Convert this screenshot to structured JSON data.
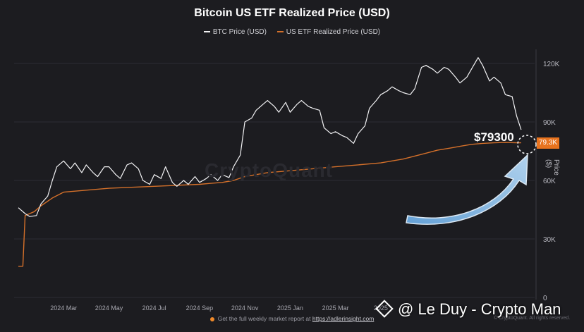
{
  "chart_data": {
    "type": "line",
    "title": "Bitcoin US ETF Realized Price (USD)",
    "xlabel": "",
    "ylabel": "Price ($)",
    "ylim": [
      0,
      130000
    ],
    "yticks": [
      0,
      30000,
      60000,
      90000,
      120000
    ],
    "ytick_labels": [
      "0",
      "30K",
      "60K",
      "90K",
      "120K"
    ],
    "xtick_labels": [
      "2024 Mar",
      "2024 May",
      "2024 Jul",
      "2024 Sep",
      "2024 Nov",
      "2025 Jan",
      "2025 Mar",
      "2025"
    ],
    "x_months": [
      2.0,
      4.0,
      6.0,
      8.0,
      10.0,
      12.0,
      14.0,
      16.0
    ],
    "xlim": [
      0.0,
      22.7
    ],
    "series": [
      {
        "name": "BTC Price (USD)",
        "color": "#f2f2f4",
        "x": [
          0.0,
          0.3,
          0.5,
          0.8,
          1.0,
          1.3,
          1.5,
          1.7,
          2.0,
          2.3,
          2.5,
          2.8,
          3.0,
          3.3,
          3.5,
          3.8,
          4.0,
          4.3,
          4.5,
          4.8,
          5.0,
          5.3,
          5.5,
          5.8,
          6.0,
          6.3,
          6.5,
          6.8,
          7.0,
          7.3,
          7.5,
          7.8,
          8.0,
          8.3,
          8.5,
          8.8,
          9.0,
          9.3,
          9.5,
          9.8,
          10.0,
          10.3,
          10.5,
          10.8,
          11.0,
          11.3,
          11.5,
          11.8,
          12.0,
          12.3,
          12.5,
          12.8,
          13.0,
          13.3,
          13.5,
          13.8,
          14.0,
          14.3,
          14.5,
          14.8,
          15.0,
          15.3,
          15.5,
          15.8,
          16.0,
          16.3,
          16.5,
          16.8,
          17.0,
          17.3,
          17.5,
          17.8,
          18.0,
          18.3,
          18.5,
          18.8,
          19.0,
          19.3,
          19.5,
          19.8,
          20.0,
          20.3,
          20.5,
          20.8,
          21.0,
          21.3,
          21.5,
          21.8,
          22.0,
          22.2
        ],
        "values": [
          46000,
          43000,
          41500,
          42000,
          48000,
          52000,
          60000,
          67000,
          70000,
          66000,
          69000,
          64000,
          68000,
          64000,
          62000,
          67000,
          67000,
          63000,
          61000,
          68000,
          69000,
          66000,
          60000,
          58000,
          63000,
          61000,
          67000,
          59000,
          57000,
          60000,
          58000,
          62000,
          59000,
          61000,
          63000,
          60000,
          63000,
          61500,
          67000,
          73000,
          90000,
          92000,
          96000,
          99000,
          101000,
          98000,
          95000,
          100000,
          95000,
          99000,
          101000,
          98000,
          97000,
          96000,
          87000,
          84000,
          85000,
          83000,
          82000,
          79000,
          84000,
          88000,
          97000,
          101000,
          104000,
          106000,
          108000,
          106000,
          105000,
          104000,
          107000,
          118000,
          119000,
          117000,
          115000,
          118000,
          117000,
          113000,
          110000,
          113000,
          117000,
          123000,
          119000,
          111000,
          113000,
          110000,
          104000,
          103000,
          93000,
          86000
        ]
      },
      {
        "name": "US ETF Realized Price (USD)",
        "color": "#d4702a",
        "x": [
          0.0,
          0.2,
          0.3,
          0.5,
          0.7,
          1.0,
          1.5,
          2.0,
          3.0,
          4.0,
          5.0,
          6.0,
          7.0,
          8.0,
          8.5,
          9.0,
          9.5,
          10.0,
          10.5,
          11.0,
          11.5,
          12.0,
          13.0,
          14.0,
          15.0,
          16.0,
          17.0,
          17.5,
          18.0,
          18.5,
          19.0,
          19.5,
          20.0,
          20.5,
          21.0,
          21.5,
          22.0,
          22.2
        ],
        "values": [
          16000,
          16000,
          42000,
          43000,
          44000,
          47000,
          51000,
          54000,
          55000,
          56000,
          56500,
          57000,
          57500,
          58000,
          58500,
          59000,
          60000,
          62000,
          63000,
          64000,
          64500,
          65000,
          66000,
          67000,
          68000,
          69000,
          71000,
          72500,
          74000,
          75500,
          76500,
          77500,
          78500,
          79000,
          79300,
          79500,
          79300,
          79300
        ]
      }
    ],
    "annotations": {
      "price_callout": "$79300",
      "current_tag": "79.3K"
    }
  },
  "legend": {
    "btc": "BTC Price (USD)",
    "etf": "US ETF Realized Price (USD)"
  },
  "brand_watermark": "CryptoQuant",
  "footer": {
    "text": "Get the full weekly market report at",
    "link": "https://adlerinsight.com"
  },
  "signature": "@ Le Duy - Crypto Man",
  "copyright": "© CryptoQuant. All rights reserved.",
  "colors": {
    "background": "#1c1c20",
    "btc_line": "#f2f2f4",
    "etf_line": "#d4702a",
    "tag_bg": "#e8731e",
    "arrow": "#8fc4ef"
  }
}
